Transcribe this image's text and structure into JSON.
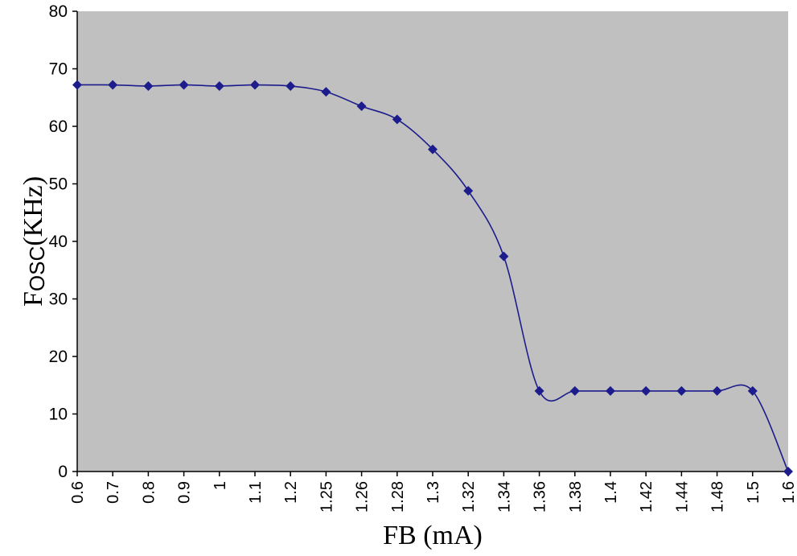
{
  "chart_data": {
    "type": "line",
    "title": "",
    "xlabel": "FB (mA)",
    "ylabel": {
      "main": "F",
      "subscript": "OSC",
      "unit": "(KHz)"
    },
    "categories": [
      "0.6",
      "0.7",
      "0.8",
      "0.9",
      "1",
      "1.1",
      "1.2",
      "1.25",
      "1.26",
      "1.28",
      "1.3",
      "1.32",
      "1.34",
      "1.36",
      "1.38",
      "1.4",
      "1.42",
      "1.44",
      "1.48",
      "1.5",
      "1.6"
    ],
    "series": [
      {
        "values": [
          67.2,
          67.2,
          67.0,
          67.2,
          67.0,
          67.2,
          67.0,
          66.0,
          63.5,
          61.2,
          56.0,
          48.8,
          37.4,
          14.0,
          14.0,
          14.0,
          14.0,
          14.0,
          14.0,
          14.0,
          0.0
        ],
        "color": "#1c1c8c",
        "marker": "diamond"
      }
    ],
    "ylim": [
      0,
      80
    ],
    "yticks": [
      0,
      10,
      20,
      30,
      40,
      50,
      60,
      70,
      80
    ],
    "grid": false,
    "plot_background": "#c0c0c0",
    "legend": "none"
  }
}
